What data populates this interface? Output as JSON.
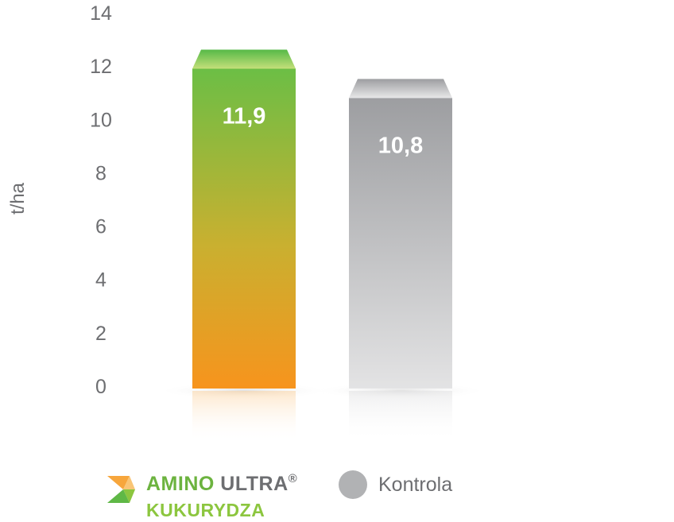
{
  "chart_data": {
    "type": "bar",
    "ylabel": "t/ha",
    "ylim": [
      0,
      14
    ],
    "yticks": [
      0,
      2,
      4,
      6,
      8,
      10,
      12,
      14
    ],
    "grid": false,
    "legend_position": "bottom",
    "series": [
      {
        "name": "AMINO ULTRA® KUKURYDZA",
        "value": 11.9,
        "label": "11,9",
        "colors": [
          "#f7941d",
          "#6cbe45"
        ]
      },
      {
        "name": "Kontrola",
        "value": 10.8,
        "label": "10,8",
        "colors": [
          "#e3e3e4",
          "#9d9ea1"
        ]
      }
    ]
  },
  "legend": {
    "brand_word1": "AMINO",
    "brand_word2": "ULTRA",
    "brand_mark": "®",
    "product": "KUKURYDZA",
    "control": "Kontrola",
    "logo_icon": "amino-ultra-logo-icon"
  }
}
